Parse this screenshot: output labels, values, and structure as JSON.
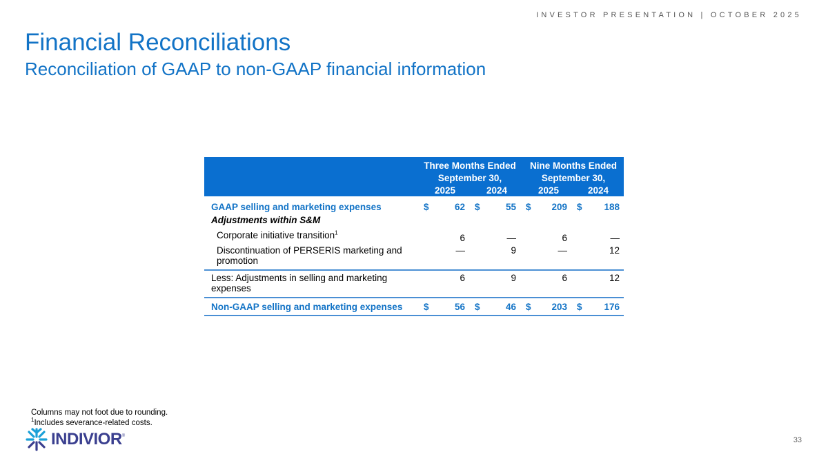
{
  "header": {
    "tagline": "INVESTOR PRESENTATION | OCTOBER 2025"
  },
  "title": "Financial Reconciliations",
  "subtitle": "Reconciliation of GAAP to non-GAAP financial information",
  "table": {
    "groups": [
      {
        "line1": "Three Months Ended",
        "line2": "September 30,"
      },
      {
        "line1": "Nine Months Ended",
        "line2": "September 30,"
      }
    ],
    "years": [
      "2025",
      "2024",
      "2025",
      "2024"
    ],
    "rows": [
      {
        "label": "GAAP selling and marketing expenses",
        "values": [
          "62",
          "55",
          "209",
          "188"
        ],
        "dollar": "$"
      },
      {
        "label": "Adjustments within S&M"
      },
      {
        "label": "Corporate initiative transition",
        "sup": "1",
        "values": [
          "6",
          "—",
          "6",
          "—"
        ]
      },
      {
        "label": "Discontinuation of PERSERIS marketing and promotion",
        "values": [
          "—",
          "9",
          "—",
          "12"
        ]
      },
      {
        "label": "Less: Adjustments in selling and marketing expenses",
        "values": [
          "6",
          "9",
          "6",
          "12"
        ]
      },
      {
        "label": "Non-GAAP selling and marketing expenses",
        "values": [
          "56",
          "46",
          "203",
          "176"
        ],
        "dollar": "$"
      }
    ]
  },
  "footnotes": {
    "line1": "Columns may not foot due to rounding.",
    "sup": "1",
    "line2": "Includes severance-related costs."
  },
  "logo": {
    "text": "INDIVIOR",
    "mark": "®"
  },
  "page_number": "33",
  "colors": {
    "accent": "#1273c6",
    "header_bg": "#0a6fd0",
    "logo_text": "#3a3f8f"
  }
}
